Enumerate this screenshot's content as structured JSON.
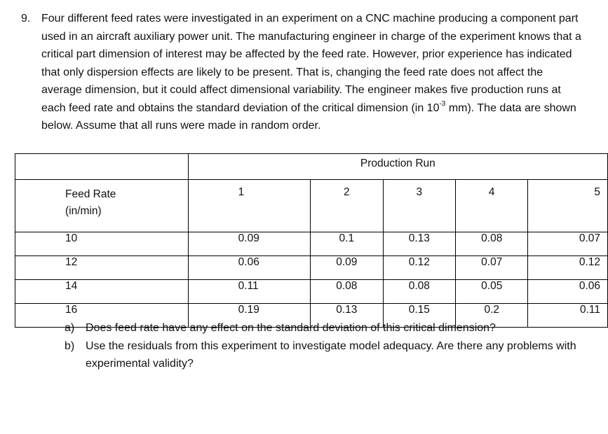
{
  "problem": {
    "number": "9.",
    "text_before_exp": "Four different feed rates were investigated in an experiment on a CNC machine producing a component part used in an aircraft auxiliary power unit. The manufacturing engineer in charge of the experiment knows that a critical part dimension of interest may be affected by the feed rate. However, prior experience has indicated that only dispersion effects are likely to be present. That is, changing the feed rate does not affect the average dimension, but it could affect dimensional variability. The engineer makes five production runs at each feed rate and obtains the standard deviation of the critical dimension (in 10",
    "exponent": "-3",
    "text_after_exp": " mm). The data are shown below. Assume that all runs were made in random order."
  },
  "table": {
    "group_header": "Production Run",
    "row_header": "Feed Rate (in/min)",
    "run_labels": [
      "1",
      "2",
      "3",
      "4",
      "5"
    ],
    "rows": [
      {
        "rate": "10",
        "values": [
          "0.09",
          "0.1",
          "0.13",
          "0.08",
          "0.07"
        ]
      },
      {
        "rate": "12",
        "values": [
          "0.06",
          "0.09",
          "0.12",
          "0.07",
          "0.12"
        ]
      },
      {
        "rate": "14",
        "values": [
          "0.11",
          "0.08",
          "0.08",
          "0.05",
          "0.06"
        ]
      },
      {
        "rate": "16",
        "values": [
          "0.19",
          "0.13",
          "0.15",
          "0.2",
          "0.11"
        ]
      }
    ]
  },
  "questions": [
    {
      "label": "a)",
      "text": "Does feed rate have any effect on the standard deviation of this critical dimension?"
    },
    {
      "label": "b)",
      "text": "Use the residuals from this experiment to investigate model adequacy. Are there any problems with experimental validity?"
    }
  ]
}
